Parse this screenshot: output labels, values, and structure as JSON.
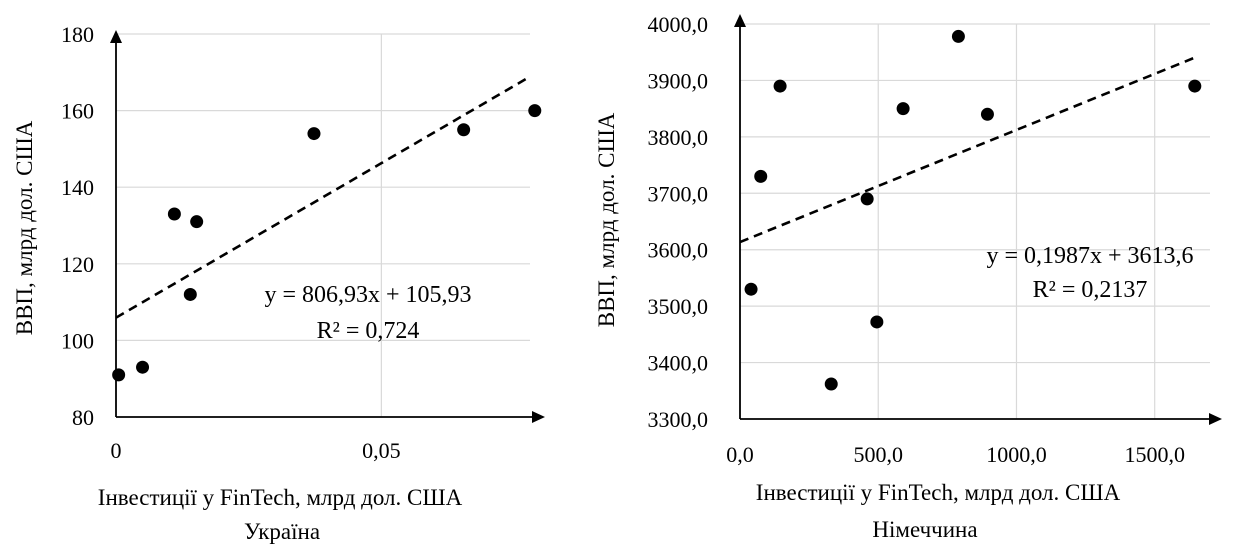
{
  "chart_data": [
    {
      "type": "scatter",
      "caption": "Україна",
      "xlabel": "Інвестиції у FinTech, млрд дол. США",
      "ylabel": "ВВП, млрд дол. США",
      "xlim": [
        0,
        0.078
      ],
      "ylim": [
        80,
        180
      ],
      "xticks": [
        0,
        0.05
      ],
      "xtick_labels": [
        "0",
        "0,05"
      ],
      "yticks": [
        80,
        100,
        120,
        140,
        160,
        180
      ],
      "ytick_labels": [
        "80",
        "100",
        "120",
        "140",
        "160",
        "180"
      ],
      "points": [
        {
          "x": 0.0005,
          "y": 91
        },
        {
          "x": 0.005,
          "y": 93
        },
        {
          "x": 0.011,
          "y": 133
        },
        {
          "x": 0.014,
          "y": 112
        },
        {
          "x": 0.0152,
          "y": 131
        },
        {
          "x": 0.0373,
          "y": 154
        },
        {
          "x": 0.0655,
          "y": 155
        },
        {
          "x": 0.0789,
          "y": 160
        }
      ],
      "trendline": {
        "slope": 806.93,
        "intercept": 105.93
      },
      "equation": "y = 806,93x + 105,93",
      "r2": "R² = 0,724",
      "grid": true,
      "legend": "none"
    },
    {
      "type": "scatter",
      "caption": "Німеччина",
      "xlabel": "Інвестиції у FinTech, млрд дол. США",
      "ylabel": "ВВП, млрд дол. США",
      "xlim": [
        0,
        1700
      ],
      "ylim": [
        3300,
        4000
      ],
      "xticks": [
        0,
        500,
        1000,
        1500
      ],
      "xtick_labels": [
        "0,0",
        "500,0",
        "1000,0",
        "1500,0"
      ],
      "yticks": [
        3300,
        3400,
        3500,
        3600,
        3700,
        3800,
        3900,
        4000
      ],
      "ytick_labels": [
        "3300,0",
        "3400,0",
        "3500,0",
        "3600,0",
        "3700,0",
        "3800,0",
        "3900,0",
        "4000,0"
      ],
      "points": [
        {
          "x": 40,
          "y": 3530
        },
        {
          "x": 75,
          "y": 3730
        },
        {
          "x": 145,
          "y": 3890
        },
        {
          "x": 330,
          "y": 3362
        },
        {
          "x": 460,
          "y": 3690
        },
        {
          "x": 495,
          "y": 3472
        },
        {
          "x": 590,
          "y": 3850
        },
        {
          "x": 790,
          "y": 3978
        },
        {
          "x": 895,
          "y": 3840
        },
        {
          "x": 1645,
          "y": 3890
        }
      ],
      "trendline": {
        "slope": 0.1987,
        "intercept": 3613.6,
        "x_range": [
          0,
          1640
        ]
      },
      "equation": "y = 0,1987x + 3613,6",
      "r2": "R² = 0,2137",
      "grid": true,
      "legend": "none"
    }
  ]
}
